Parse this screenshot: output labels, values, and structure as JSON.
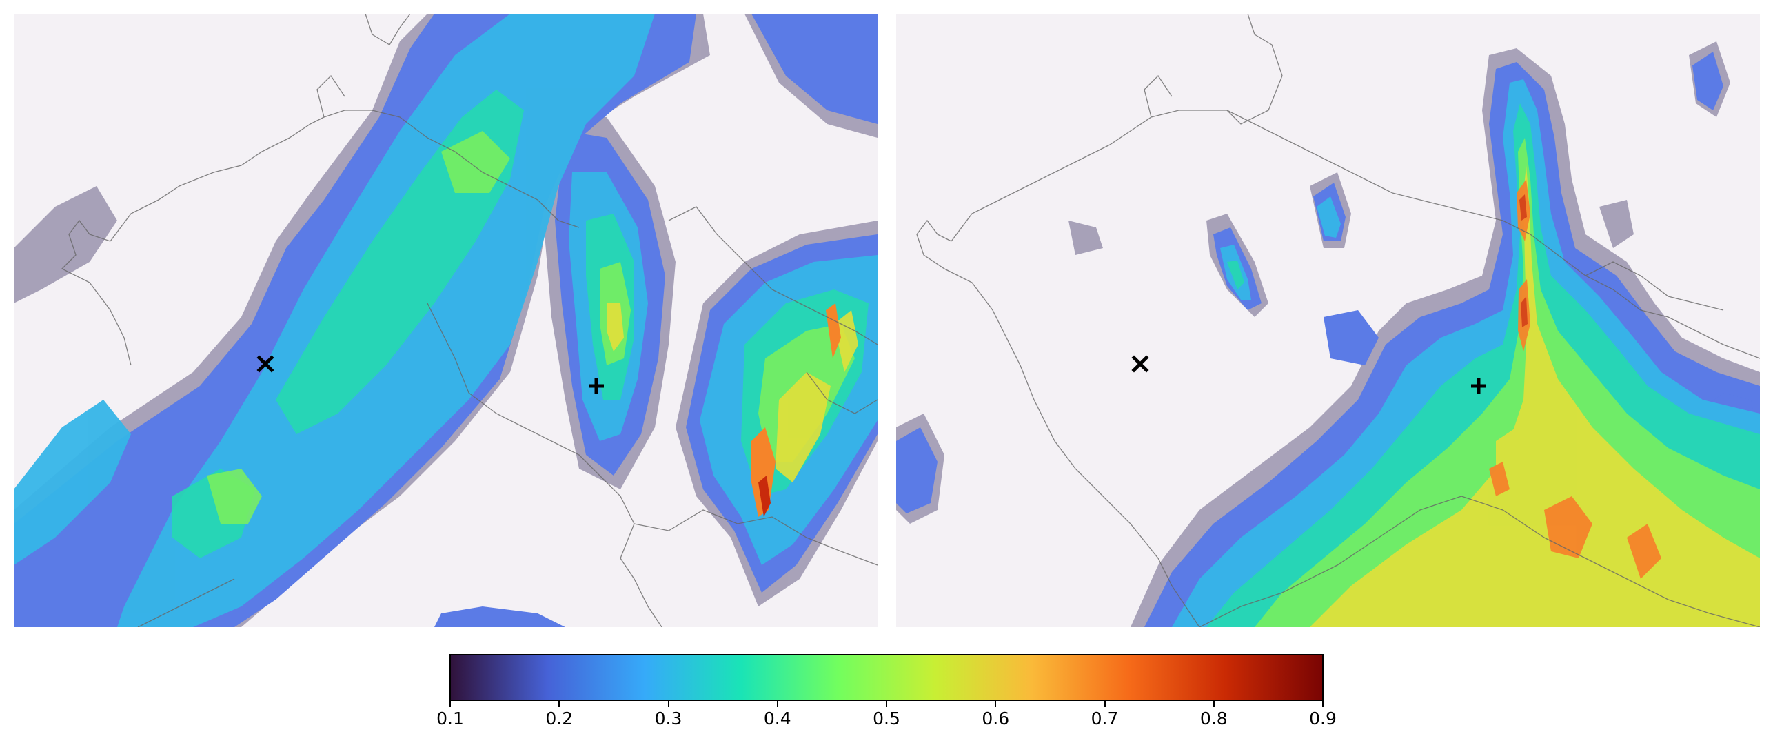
{
  "maps": [
    {
      "id": "left",
      "markers": [
        {
          "type": "cross-x",
          "label": "x-marker"
        },
        {
          "type": "plus",
          "label": "plus-marker"
        }
      ]
    },
    {
      "id": "right",
      "markers": [
        {
          "type": "cross-x",
          "label": "x-marker"
        },
        {
          "type": "plus",
          "label": "plus-marker"
        }
      ]
    }
  ],
  "colorbar": {
    "min": 0.1,
    "max": 0.9,
    "ticks": [
      "0.1",
      "0.2",
      "0.3",
      "0.4",
      "0.5",
      "0.6",
      "0.7",
      "0.8",
      "0.9"
    ],
    "colormap": "turbo",
    "colors": [
      "#30123b",
      "#4662d7",
      "#36aaf9",
      "#1ae4b6",
      "#72fe5e",
      "#c8ef34",
      "#faba39",
      "#f66b19",
      "#ca2a04",
      "#7a0403"
    ]
  },
  "background_color": "#f4f1f5",
  "low_value_color": "#a39db5"
}
